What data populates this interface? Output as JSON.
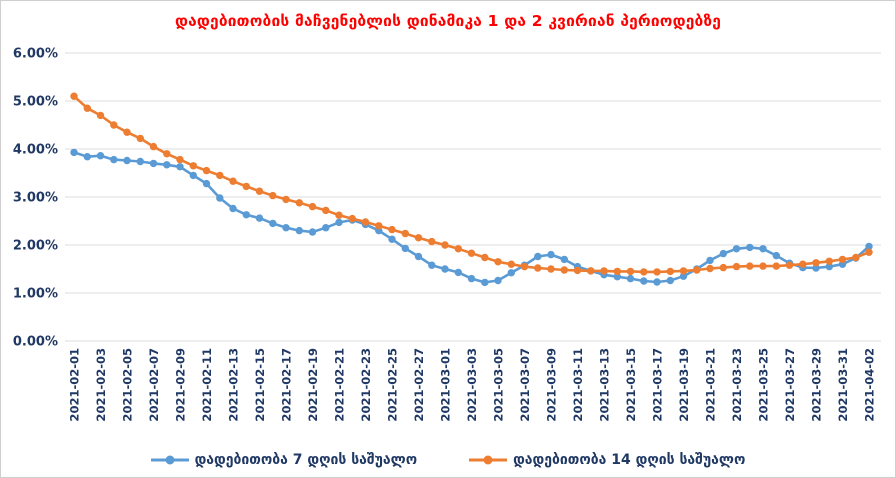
{
  "chart_data": {
    "type": "line",
    "title": "დადებითობის მაჩვენებლის დინამიკა 1 და 2 კვირიან პერიოდებზე",
    "title_color": "#FF0000",
    "axis_label_color": "#1F3864",
    "gridline_color": "#DCDCDC",
    "grid": true,
    "marker": "circle",
    "legend_position": "bottom",
    "ylim": [
      0,
      6
    ],
    "y_tick_labels": [
      "0.00%",
      "1.00%",
      "2.00%",
      "3.00%",
      "4.00%",
      "5.00%",
      "6.00%"
    ],
    "x_label_every": 2,
    "x": [
      "2021-02-01",
      "2021-02-02",
      "2021-02-03",
      "2021-02-04",
      "2021-02-05",
      "2021-02-06",
      "2021-02-07",
      "2021-02-08",
      "2021-02-09",
      "2021-02-10",
      "2021-02-11",
      "2021-02-12",
      "2021-02-13",
      "2021-02-14",
      "2021-02-15",
      "2021-02-16",
      "2021-02-17",
      "2021-02-18",
      "2021-02-19",
      "2021-02-20",
      "2021-02-21",
      "2021-02-22",
      "2021-02-23",
      "2021-02-24",
      "2021-02-25",
      "2021-02-26",
      "2021-02-27",
      "2021-02-28",
      "2021-03-01",
      "2021-03-02",
      "2021-03-03",
      "2021-03-04",
      "2021-03-05",
      "2021-03-06",
      "2021-03-07",
      "2021-03-08",
      "2021-03-09",
      "2021-03-10",
      "2021-03-11",
      "2021-03-12",
      "2021-03-13",
      "2021-03-14",
      "2021-03-15",
      "2021-03-16",
      "2021-03-17",
      "2021-03-18",
      "2021-03-19",
      "2021-03-20",
      "2021-03-21",
      "2021-03-22",
      "2021-03-23",
      "2021-03-24",
      "2021-03-25",
      "2021-03-26",
      "2021-03-27",
      "2021-03-28",
      "2021-03-29",
      "2021-03-30",
      "2021-03-31",
      "2021-04-01",
      "2021-04-02"
    ],
    "series": [
      {
        "id": "avg7",
        "name": "დადებითობა 7 დღის საშუალო",
        "color": "#5B9BD5",
        "values": [
          3.93,
          3.84,
          3.86,
          3.78,
          3.76,
          3.74,
          3.7,
          3.67,
          3.63,
          3.45,
          3.28,
          2.98,
          2.76,
          2.63,
          2.56,
          2.45,
          2.36,
          2.3,
          2.27,
          2.36,
          2.47,
          2.52,
          2.43,
          2.3,
          2.12,
          1.93,
          1.76,
          1.58,
          1.5,
          1.43,
          1.3,
          1.22,
          1.26,
          1.42,
          1.58,
          1.76,
          1.8,
          1.7,
          1.55,
          1.46,
          1.38,
          1.34,
          1.3,
          1.25,
          1.23,
          1.26,
          1.35,
          1.5,
          1.68,
          1.82,
          1.92,
          1.95,
          1.92,
          1.78,
          1.62,
          1.53,
          1.52,
          1.55,
          1.6,
          1.73,
          1.97
        ]
      },
      {
        "id": "avg14",
        "name": "დადებითობა 14 დღის საშუალო",
        "color": "#ED7D31",
        "values": [
          5.1,
          4.85,
          4.7,
          4.5,
          4.35,
          4.22,
          4.05,
          3.9,
          3.78,
          3.65,
          3.55,
          3.45,
          3.33,
          3.22,
          3.12,
          3.03,
          2.95,
          2.88,
          2.8,
          2.72,
          2.62,
          2.55,
          2.48,
          2.4,
          2.32,
          2.24,
          2.15,
          2.07,
          2.0,
          1.92,
          1.83,
          1.74,
          1.65,
          1.6,
          1.55,
          1.52,
          1.5,
          1.48,
          1.47,
          1.46,
          1.46,
          1.45,
          1.45,
          1.44,
          1.44,
          1.45,
          1.46,
          1.48,
          1.51,
          1.53,
          1.55,
          1.56,
          1.56,
          1.56,
          1.58,
          1.6,
          1.63,
          1.66,
          1.7,
          1.74,
          1.85
        ]
      }
    ]
  }
}
